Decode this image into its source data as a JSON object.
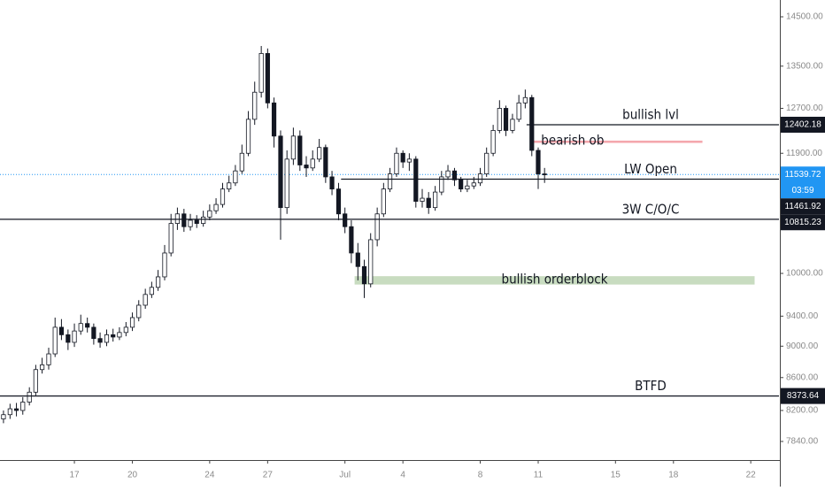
{
  "chart_data": {
    "type": "candlestick",
    "log_scale": true,
    "grid": false,
    "up_color": "#ffffff",
    "down_color": "#131722",
    "wick_color": "#131722",
    "xlim": [
      13.15,
      53.46
    ],
    "xticks": [
      {
        "value": 17,
        "label": "17"
      },
      {
        "value": 20,
        "label": "20"
      },
      {
        "value": 24,
        "label": "24"
      },
      {
        "value": 27,
        "label": "27"
      },
      {
        "value": 31,
        "label": "Jul"
      },
      {
        "value": 34,
        "label": "4"
      },
      {
        "value": 38,
        "label": "8"
      },
      {
        "value": 41,
        "label": "11"
      },
      {
        "value": 45,
        "label": "15"
      },
      {
        "value": 48,
        "label": "18"
      },
      {
        "value": 52,
        "label": "22"
      }
    ],
    "ylim": [
      7632,
      14857
    ],
    "yticks": [
      {
        "value": 14500,
        "label": "14500.00"
      },
      {
        "value": 13500,
        "label": "13500.00"
      },
      {
        "value": 12700,
        "label": "12700.00"
      },
      {
        "value": 11900,
        "label": "11900.00"
      },
      {
        "value": 10000,
        "label": "10000.00"
      },
      {
        "value": 9400,
        "label": "9400.00"
      },
      {
        "value": 9000,
        "label": "9000.00"
      },
      {
        "value": 8600,
        "label": "8600.00"
      },
      {
        "value": 8200,
        "label": "8200.00"
      },
      {
        "value": 7840,
        "label": "7840.00"
      }
    ],
    "x": [
      13.33,
      13.67,
      14,
      14.33,
      14.67,
      15,
      15.33,
      15.67,
      16,
      16.33,
      16.67,
      17,
      17.33,
      17.67,
      18,
      18.33,
      18.67,
      19,
      19.33,
      19.67,
      20,
      20.33,
      20.67,
      21,
      21.33,
      21.67,
      22,
      22.33,
      22.67,
      23,
      23.33,
      23.67,
      24,
      24.33,
      24.67,
      25,
      25.33,
      25.67,
      26,
      26.33,
      26.67,
      27,
      27.33,
      27.67,
      28,
      28.33,
      28.67,
      29,
      29.33,
      29.67,
      30,
      30.33,
      30.67,
      31,
      31.33,
      31.67,
      32,
      32.33,
      32.67,
      33,
      33.33,
      33.67,
      34,
      34.33,
      34.67,
      35,
      35.33,
      35.67,
      36,
      36.33,
      36.67,
      37,
      37.33,
      37.67,
      38,
      38.33,
      38.67,
      39,
      39.33,
      39.67,
      40,
      40.33,
      40.67,
      41,
      41.33
    ],
    "open": [
      8100,
      8150,
      8220,
      8200,
      8300,
      8420,
      8700,
      8760,
      8900,
      9250,
      9150,
      9050,
      9200,
      9300,
      9250,
      9100,
      9050,
      9150,
      9120,
      9180,
      9250,
      9380,
      9550,
      9700,
      9800,
      9950,
      10300,
      10750,
      10900,
      10700,
      10800,
      10750,
      10850,
      10950,
      11050,
      11300,
      11400,
      11600,
      11900,
      12500,
      13000,
      13750,
      12800,
      12200,
      11000,
      11800,
      12200,
      11700,
      11650,
      11800,
      12000,
      11500,
      11300,
      10900,
      10700,
      10300,
      10100,
      9850,
      10500,
      10900,
      11300,
      11550,
      11900,
      11750,
      11800,
      11100,
      11150,
      11000,
      11250,
      11500,
      11600,
      11450,
      11300,
      11350,
      11400,
      11550,
      11900,
      12300,
      12700,
      12300,
      12500,
      12800,
      12900,
      11950,
      11550
    ],
    "high": [
      8200,
      8280,
      8290,
      8360,
      8480,
      8760,
      8850,
      8980,
      9380,
      9360,
      9220,
      9300,
      9420,
      9380,
      9300,
      9180,
      9220,
      9230,
      9250,
      9320,
      9450,
      9620,
      9780,
      9880,
      10050,
      10420,
      10900,
      11000,
      10980,
      10900,
      10880,
      10950,
      11050,
      11150,
      11400,
      11520,
      11700,
      12050,
      12650,
      13200,
      13900,
      13850,
      12900,
      12300,
      11950,
      12350,
      12300,
      11850,
      11950,
      12150,
      12050,
      11600,
      11400,
      11000,
      10800,
      10450,
      10200,
      10600,
      11000,
      11400,
      11650,
      12000,
      11950,
      11900,
      11850,
      11300,
      11250,
      11350,
      11600,
      11700,
      11650,
      11500,
      11450,
      11500,
      11650,
      12000,
      12400,
      12850,
      12750,
      12600,
      12950,
      13050,
      12950,
      12000,
      11650
    ],
    "low": [
      8050,
      8100,
      8130,
      8150,
      8260,
      8380,
      8650,
      8700,
      8860,
      9080,
      8950,
      8990,
      9150,
      9180,
      9020,
      8980,
      9000,
      9060,
      9080,
      9130,
      9200,
      9330,
      9500,
      9650,
      9750,
      9900,
      10250,
      10650,
      10620,
      10640,
      10680,
      10700,
      10800,
      10900,
      11000,
      11250,
      11350,
      11550,
      11850,
      12400,
      12900,
      12700,
      12000,
      10500,
      10900,
      11700,
      11600,
      11500,
      11600,
      11750,
      11400,
      11200,
      10800,
      10600,
      10150,
      9900,
      9650,
      9800,
      10400,
      10850,
      11250,
      11500,
      11650,
      11600,
      11000,
      11000,
      10900,
      10950,
      11200,
      11450,
      11350,
      11250,
      11250,
      11300,
      11350,
      11500,
      11850,
      12250,
      12200,
      12250,
      12450,
      12700,
      11850,
      11300,
      11400
    ],
    "close": [
      8150,
      8220,
      8200,
      8300,
      8420,
      8700,
      8760,
      8900,
      9250,
      9150,
      9050,
      9200,
      9300,
      9250,
      9100,
      9050,
      9150,
      9120,
      9180,
      9250,
      9380,
      9550,
      9700,
      9800,
      9950,
      10300,
      10750,
      10900,
      10700,
      10800,
      10750,
      10850,
      10950,
      11050,
      11300,
      11400,
      11600,
      11900,
      12500,
      13000,
      13750,
      12800,
      12200,
      11000,
      11800,
      12200,
      11700,
      11650,
      11800,
      12000,
      11500,
      11300,
      10900,
      10700,
      10300,
      10100,
      9850,
      10500,
      10900,
      11300,
      11550,
      11900,
      11750,
      11800,
      11100,
      11150,
      11000,
      11250,
      11500,
      11600,
      11450,
      11300,
      11350,
      11400,
      11550,
      11900,
      12300,
      12700,
      12300,
      12500,
      12800,
      12900,
      11950,
      11550,
      11540
    ],
    "levels": [
      {
        "name": "bullish lvl",
        "value": 12402.18,
        "from": 40.4
      },
      {
        "name": "LW Open",
        "value": 11461.92,
        "from": 30.8
      },
      {
        "name": "3W C/O/C",
        "value": 10815.23
      },
      {
        "name": "BTFD",
        "value": 8373.64
      }
    ],
    "zones": [
      {
        "name": "bearish ob",
        "top": 12120,
        "bottom": 12080,
        "from": 40.6,
        "to": 49.5,
        "color": "#f4a7ad"
      },
      {
        "name": "bullish orderblock",
        "top": 9960,
        "bottom": 9840,
        "from": 31.5,
        "to": 52.2,
        "color": "#c8dcc0"
      }
    ],
    "current_price": {
      "value": 11539.72,
      "countdown": "03:59",
      "color": "#2196f3"
    }
  }
}
